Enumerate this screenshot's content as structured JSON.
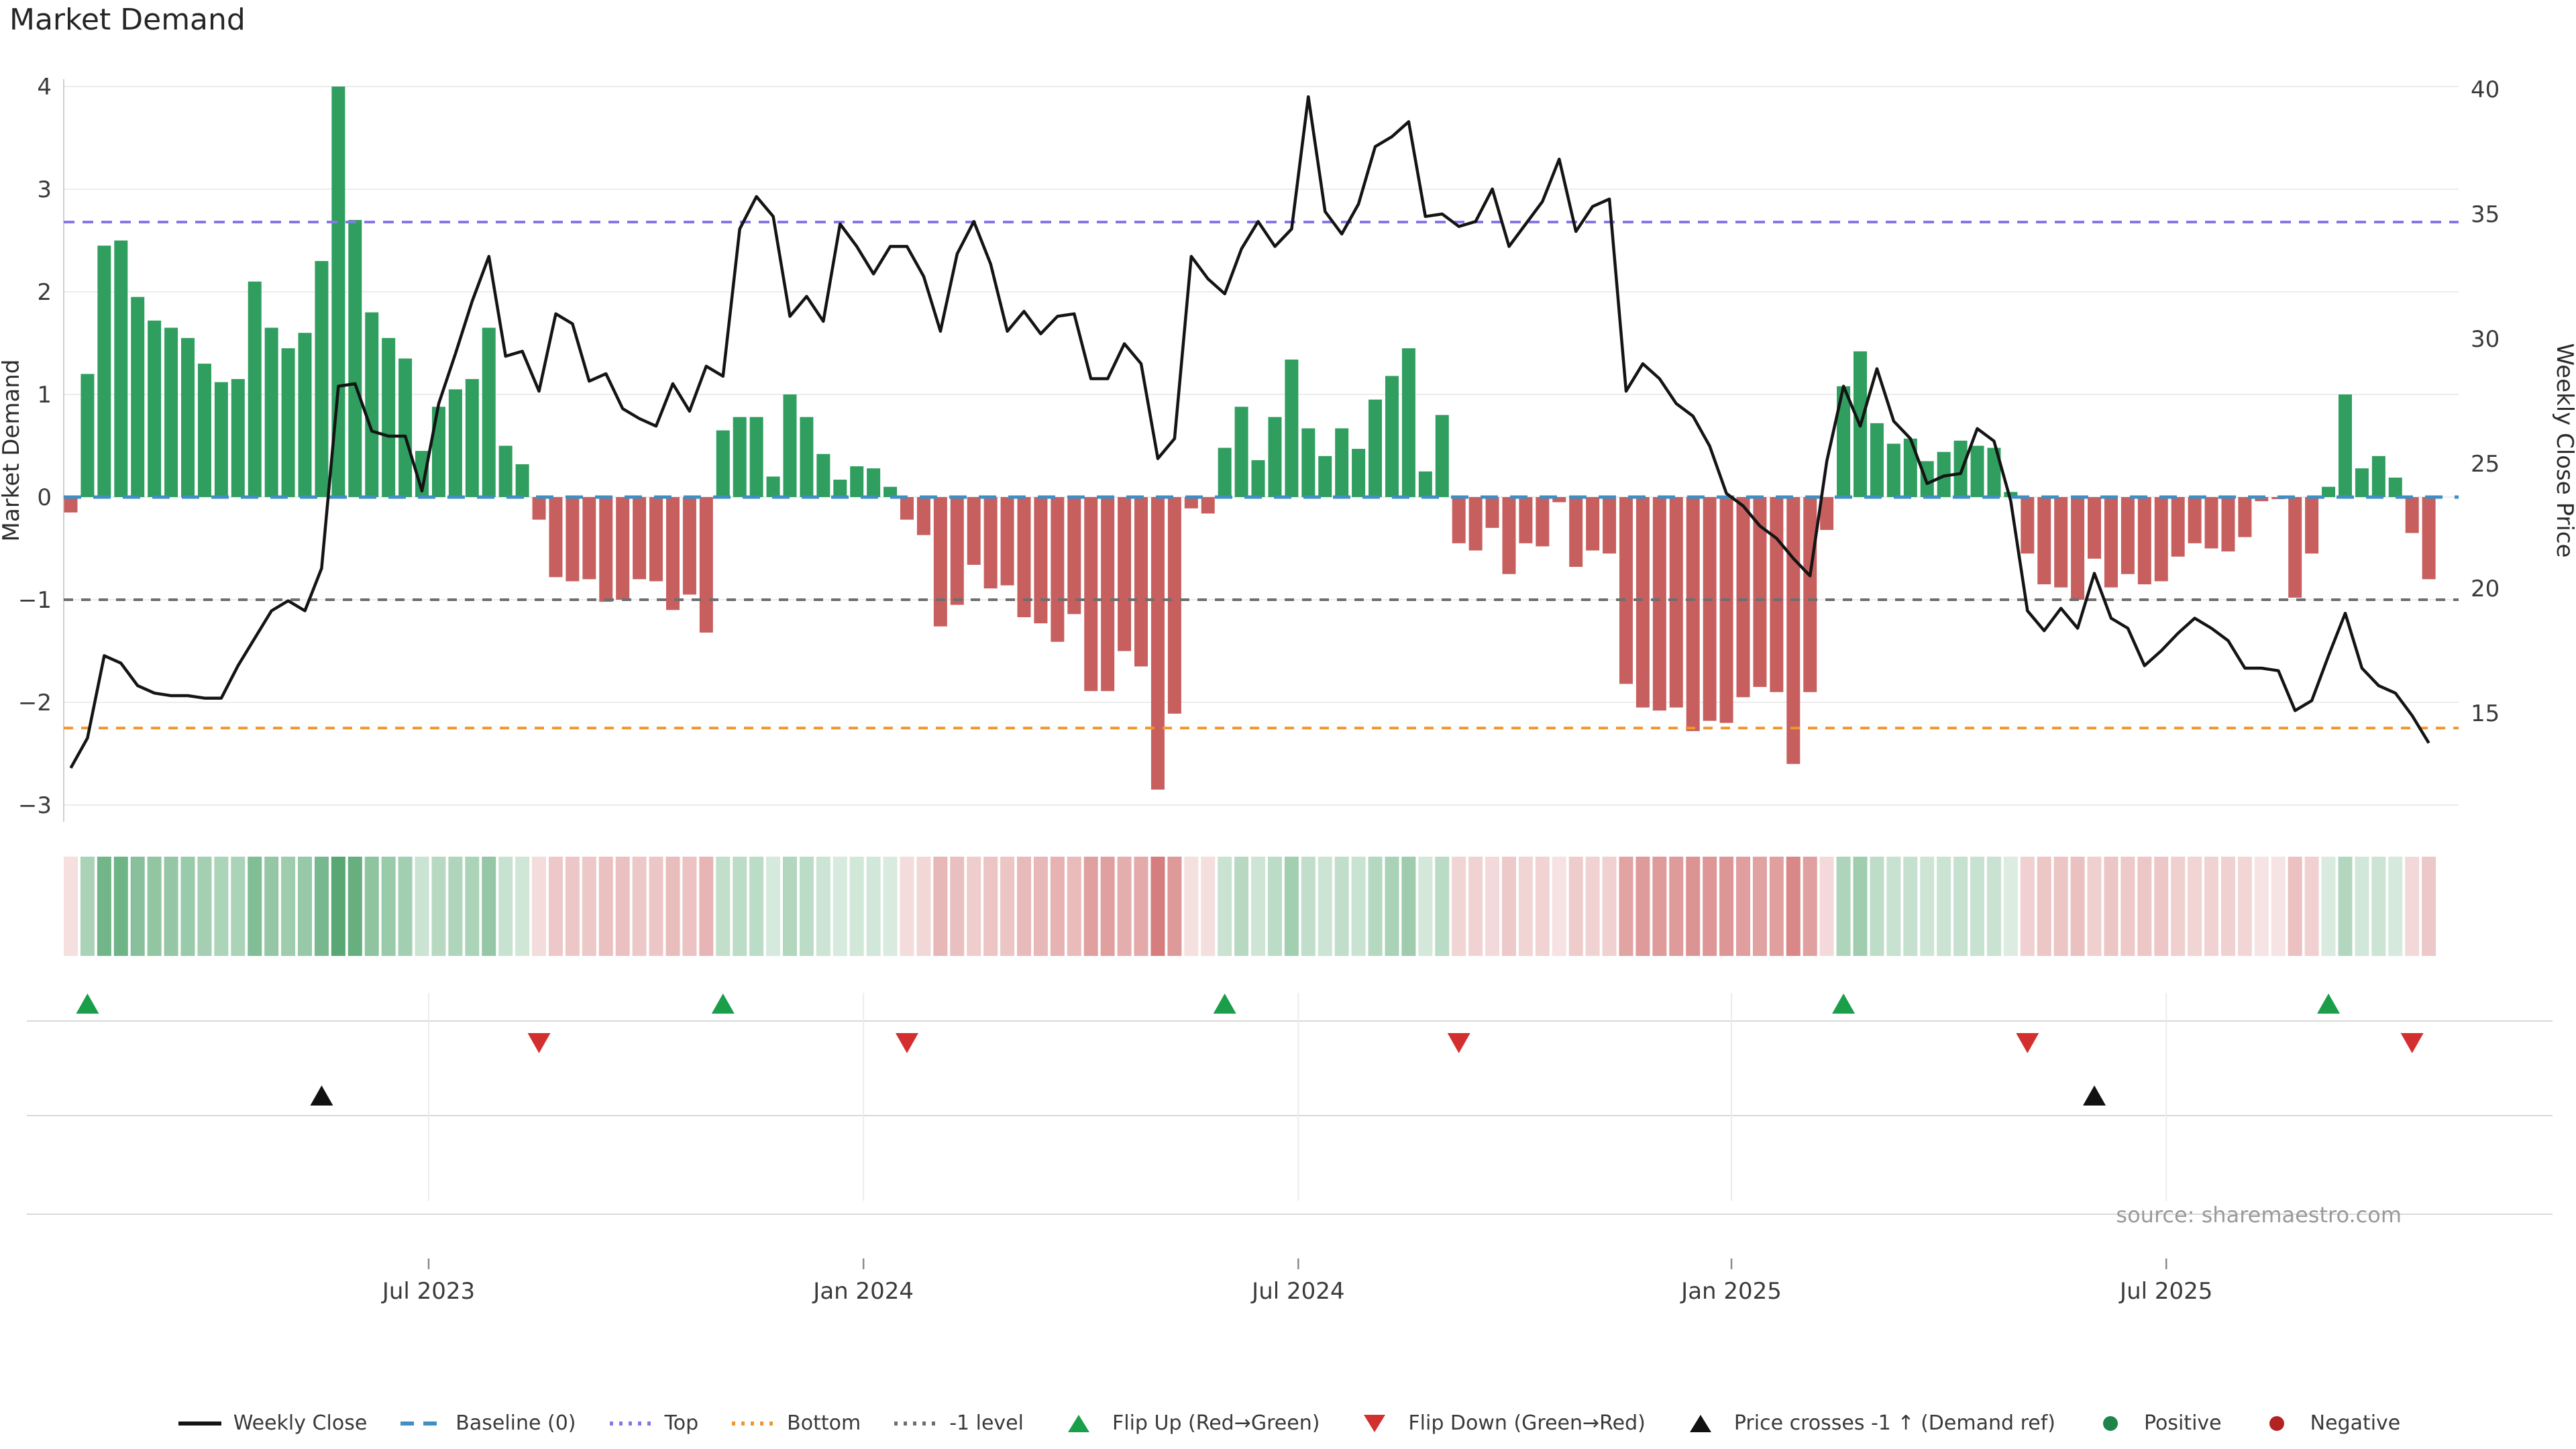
{
  "title": "Market Demand",
  "source": "source: sharemaestro.com",
  "axes": {
    "left_label": "Market Demand",
    "right_label": "Weekly Close Price",
    "left_ticks": [
      4,
      3,
      2,
      1,
      0,
      -1,
      -2,
      -3
    ],
    "right_ticks": [
      40,
      35,
      30,
      25,
      20,
      15
    ],
    "x_ticks": [
      {
        "label": "Jul 2023",
        "week": 21.4
      },
      {
        "label": "Jan 2024",
        "week": 47.4
      },
      {
        "label": "Jul 2024",
        "week": 73.4
      },
      {
        "label": "Jan 2025",
        "week": 99.3
      },
      {
        "label": "Jul 2025",
        "week": 125.3
      }
    ]
  },
  "colors": {
    "positive_bar": "#2f9e5f",
    "negative_bar": "#c75f5f",
    "price_line": "#141414",
    "baseline": "#3f8fc4",
    "top_line": "#8478e8",
    "bottom_line": "#f0962e",
    "minus1_line": "#6e6e6e",
    "flip_up": "#1a9e4a",
    "flip_down": "#d32f2f",
    "cross_marker": "#111111",
    "grid": "#ececec",
    "panel_grid": "#d9d9d9",
    "tick_text": "#3a3a3a",
    "source_text": "#9a9a9a"
  },
  "chart_data": {
    "type": "bar+line",
    "title": "Market Demand",
    "xlabel": "",
    "ylabel_left": "Market Demand",
    "ylabel_right": "Weekly Close Price",
    "x_unit": "week",
    "n_weeks": 142,
    "x_tick_labels": [
      "Jul 2023",
      "Jan 2024",
      "Jul 2024",
      "Jan 2025",
      "Jul 2025"
    ],
    "ylim_left": [
      -3.2,
      4.1
    ],
    "ylim_right": [
      10.7,
      40.4
    ],
    "grid": true,
    "legend_position": "bottom",
    "ref_lines": {
      "baseline": 0,
      "top": 2.68,
      "bottom": -2.25,
      "minus1": -1
    },
    "demand": [
      -0.15,
      1.2,
      2.45,
      2.5,
      1.95,
      1.72,
      1.65,
      1.55,
      1.3,
      1.12,
      1.15,
      2.1,
      1.65,
      1.45,
      1.6,
      2.3,
      4.0,
      2.7,
      1.8,
      1.55,
      1.35,
      0.45,
      0.88,
      1.05,
      1.15,
      1.65,
      0.5,
      0.32,
      -0.22,
      -0.78,
      -0.82,
      -0.8,
      -1.02,
      -1.0,
      -0.8,
      -0.82,
      -1.1,
      -0.95,
      -1.32,
      0.65,
      0.78,
      0.78,
      0.2,
      1.0,
      0.78,
      0.42,
      0.17,
      0.3,
      0.28,
      0.1,
      -0.22,
      -0.37,
      -1.26,
      -1.05,
      -0.66,
      -0.89,
      -0.86,
      -1.17,
      -1.23,
      -1.41,
      -1.14,
      -1.89,
      -1.89,
      -1.5,
      -1.65,
      -2.85,
      -2.11,
      -0.11,
      -0.16,
      0.48,
      0.88,
      0.36,
      0.78,
      1.34,
      0.67,
      0.4,
      0.67,
      0.47,
      0.95,
      1.18,
      1.45,
      0.25,
      0.8,
      -0.45,
      -0.52,
      -0.3,
      -0.75,
      -0.45,
      -0.48,
      -0.05,
      -0.68,
      -0.52,
      -0.55,
      -1.82,
      -2.05,
      -2.08,
      -2.05,
      -2.28,
      -2.18,
      -2.2,
      -1.95,
      -1.85,
      -1.9,
      -2.6,
      -1.9,
      -0.32,
      1.08,
      1.42,
      0.72,
      0.52,
      0.57,
      0.35,
      0.44,
      0.55,
      0.5,
      0.48,
      0.05,
      -0.55,
      -0.85,
      -0.88,
      -1.0,
      -0.6,
      -0.88,
      -0.75,
      -0.85,
      -0.82,
      -0.58,
      -0.45,
      -0.5,
      -0.53,
      -0.39,
      -0.04,
      -0.02,
      -0.98,
      -0.55,
      0.1,
      1.0,
      0.28,
      0.4,
      0.19,
      -0.35,
      -0.8
    ],
    "price": [
      12.8,
      14.0,
      17.3,
      17.0,
      16.1,
      15.8,
      15.7,
      15.7,
      15.6,
      15.6,
      16.9,
      18.0,
      19.1,
      19.5,
      19.1,
      20.8,
      28.1,
      28.2,
      26.3,
      26.1,
      26.1,
      23.9,
      27.4,
      29.4,
      31.5,
      33.3,
      29.3,
      29.5,
      27.9,
      31.0,
      30.6,
      28.3,
      28.6,
      27.2,
      26.8,
      26.5,
      28.2,
      27.1,
      28.9,
      28.5,
      34.4,
      35.7,
      34.9,
      30.9,
      31.7,
      30.7,
      34.6,
      33.7,
      32.6,
      33.7,
      33.7,
      32.5,
      30.3,
      33.4,
      34.7,
      33.0,
      30.3,
      31.1,
      30.2,
      30.9,
      31.0,
      28.4,
      28.4,
      29.8,
      29.0,
      25.2,
      26.0,
      33.3,
      32.4,
      31.8,
      33.6,
      34.7,
      33.7,
      34.4,
      39.7,
      35.1,
      34.2,
      35.4,
      37.7,
      38.1,
      38.7,
      34.9,
      35.0,
      34.5,
      34.7,
      36.0,
      33.7,
      34.6,
      35.5,
      37.2,
      34.3,
      35.3,
      35.6,
      27.9,
      29.0,
      28.4,
      27.4,
      26.9,
      25.7,
      23.8,
      23.3,
      22.5,
      22.0,
      21.2,
      20.5,
      25.1,
      28.1,
      26.5,
      28.8,
      26.7,
      26.0,
      24.2,
      24.5,
      24.6,
      26.4,
      25.9,
      23.5,
      19.1,
      18.3,
      19.2,
      18.4,
      20.6,
      18.8,
      18.4,
      16.9,
      17.5,
      18.2,
      18.8,
      18.4,
      17.9,
      16.8,
      16.8,
      16.7,
      15.1,
      15.5,
      17.3,
      19.0,
      16.8,
      16.1,
      15.8,
      14.9,
      13.8
    ],
    "markers": {
      "flip_up_weeks": [
        1,
        39,
        69,
        106,
        135
      ],
      "flip_down_weeks": [
        28,
        50,
        83,
        117,
        140
      ],
      "price_cross_minus1_weeks": [
        15,
        121
      ]
    },
    "heatmap": "one cell per week; green = positive demand, red = negative demand, intensity proportional to |value|"
  },
  "legend": {
    "items": [
      {
        "label": "Weekly Close",
        "swatch": "line",
        "color": "#141414"
      },
      {
        "label": "Baseline (0)",
        "swatch": "dashes",
        "color": "#3f8fc4"
      },
      {
        "label": "Top",
        "swatch": "dots",
        "color": "#8478e8"
      },
      {
        "label": "Bottom",
        "swatch": "dots",
        "color": "#f0962e"
      },
      {
        "label": "-1 level",
        "swatch": "dots",
        "color": "#6e6e6e"
      },
      {
        "label": "Flip Up (Red→Green)",
        "swatch": "tri-up",
        "color": "#1a9e4a"
      },
      {
        "label": "Flip Down (Green→Red)",
        "swatch": "tri-down",
        "color": "#d32f2f"
      },
      {
        "label": "Price crosses -1 ↑ (Demand ref)",
        "swatch": "tri-up",
        "color": "#111111"
      },
      {
        "label": "Positive",
        "swatch": "dot",
        "color": "#1e8449"
      },
      {
        "label": "Negative",
        "swatch": "dot",
        "color": "#b22222"
      }
    ]
  }
}
